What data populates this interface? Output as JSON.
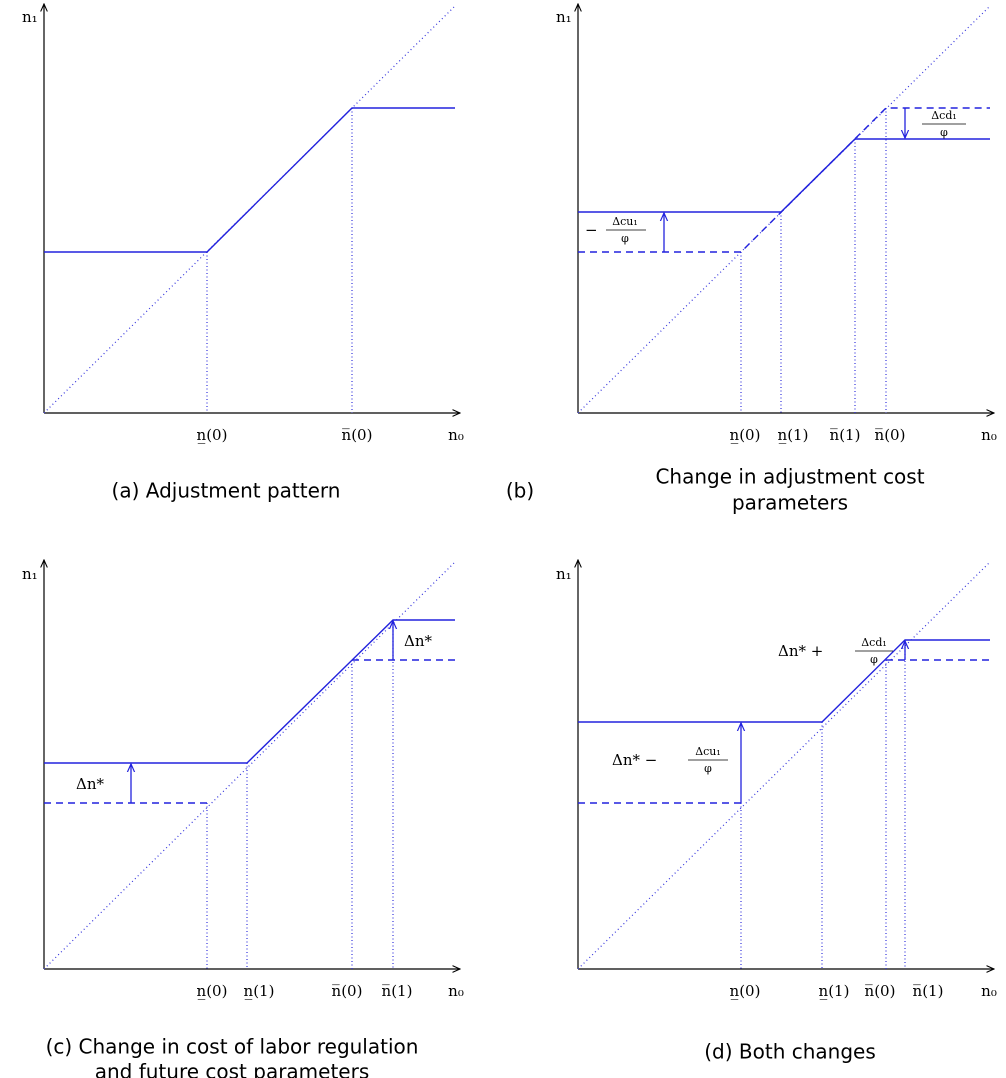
{
  "panels": [
    {
      "y_label": "n₁",
      "x_label": "n₀",
      "ticks": [
        "n̲(0)",
        "n̅(0)"
      ],
      "caption": [
        "(a) Adjustment pattern"
      ]
    },
    {
      "y_label": "n₁",
      "x_label": "n₀",
      "ticks": [
        "n̲(0)",
        "n̲(1)",
        "n̅(1)",
        "n̅(0)"
      ],
      "annotations": [
        {
          "sign": "−",
          "numerator": "Δcu₁",
          "denominator": "φ"
        },
        {
          "numerator": "Δcd₁",
          "denominator": "φ"
        }
      ],
      "caption_label": "(b)",
      "caption": [
        "Change in adjustment cost",
        "parameters"
      ]
    },
    {
      "y_label": "n₁",
      "x_label": "n₀",
      "ticks": [
        "n̲(0)",
        "n̲(1)",
        "n̅(0)",
        "n̅(1)"
      ],
      "annotations": [
        {
          "text": "Δn*"
        },
        {
          "text": "Δn*"
        }
      ],
      "caption": [
        "(c) Change in cost of labor regulation",
        "and future cost parameters"
      ]
    },
    {
      "y_label": "n₁",
      "x_label": "n₀",
      "ticks": [
        "n̲(0)",
        "n̲(1)",
        "n̅(0)",
        "n̅(1)"
      ],
      "annotations": [
        {
          "prefix": "Δn* −",
          "numerator": "Δcu₁",
          "denominator": "φ"
        },
        {
          "prefix": "Δn* +",
          "numerator": "Δcd₁",
          "denominator": "φ"
        }
      ],
      "caption": [
        "(d) Both changes"
      ]
    }
  ]
}
